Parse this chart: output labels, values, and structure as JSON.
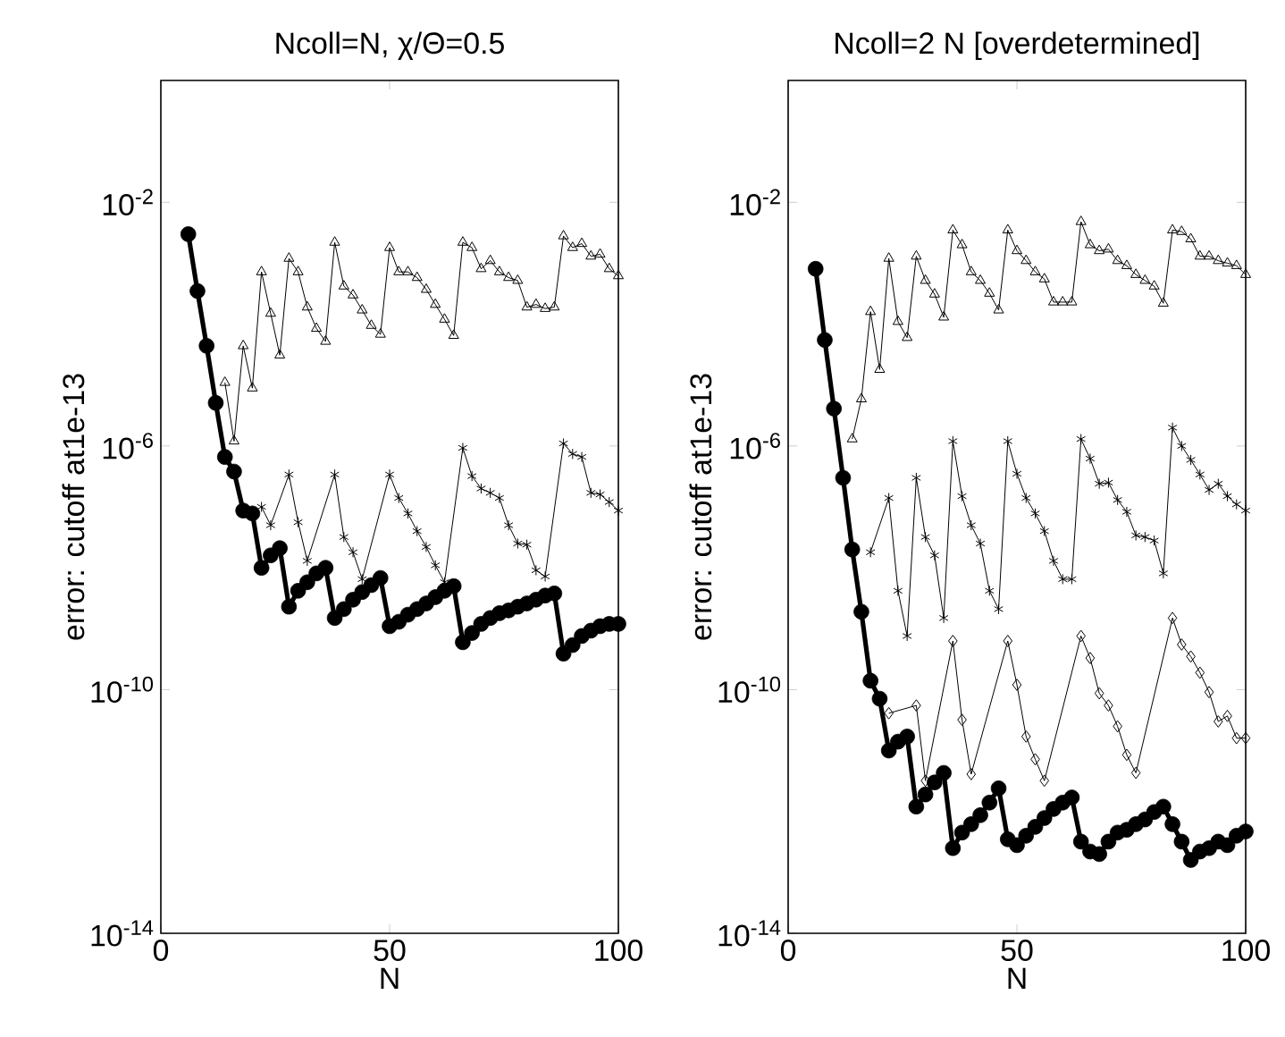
{
  "chart_data": [
    {
      "type": "line",
      "title": "Ncoll=N, χ/Θ=0.5",
      "xlabel": "N",
      "ylabel": "error: cutoff at1e-13",
      "log": "y",
      "xlim": [
        0,
        100
      ],
      "xticks": [
        0,
        50,
        100
      ],
      "ylim": [
        1e-14,
        1
      ],
      "yticks": [
        {
          "value": 1e-14,
          "label": "10$^{-14}$"
        },
        {
          "value": 1e-10,
          "label": "10$^{-10}$"
        },
        {
          "value": 1e-06,
          "label": "10$^{-6}$"
        },
        {
          "value": 0.01,
          "label": "10$^{-2}$"
        }
      ],
      "series": [
        {
          "color": "#000000",
          "marker": "triangle",
          "line_style": "solid",
          "x": [
            14,
            16,
            18,
            20,
            22,
            24,
            26,
            28,
            30,
            32,
            34,
            36,
            38,
            40,
            42,
            44,
            46,
            48,
            50,
            52,
            54,
            56,
            58,
            60,
            62,
            64,
            66,
            68,
            70,
            72,
            74,
            76,
            78,
            80,
            82,
            84,
            86,
            88,
            90,
            92,
            94,
            96,
            98,
            100
          ],
          "values": [
            1.1e-05,
            1.2e-06,
            4.4e-05,
            8.9e-06,
            0.00072,
            0.00015,
            3.1e-05,
            0.0012,
            0.00072,
            0.00019,
            8.5e-05,
            5.2e-05,
            0.0022,
            0.00042,
            0.0003,
            0.00017,
            9.5e-05,
            6.8e-05,
            0.0018,
            0.00072,
            0.00072,
            0.00058,
            0.00037,
            0.00021,
            0.00012,
            6.5e-05,
            0.0022,
            0.0018,
            0.00081,
            0.0011,
            0.00072,
            0.00058,
            0.00052,
            0.00019,
            0.00021,
            0.00018,
            0.00019,
            0.0028,
            0.0018,
            0.0021,
            0.0013,
            0.0014,
            0.00081,
            0.00062
          ]
        },
        {
          "color": "#000000",
          "marker": "cross",
          "line_style": "solid",
          "x": [
            22,
            24,
            26,
            28,
            30,
            32,
            38,
            40,
            42,
            44,
            50,
            52,
            54,
            56,
            58,
            60,
            62,
            66,
            68,
            70,
            72,
            74,
            76,
            78,
            80,
            82,
            84,
            86,
            88,
            90,
            92,
            94,
            96,
            98,
            100
          ],
          "values": [
            1e-07,
            5e-08,
            null,
            3.4e-07,
            5.6e-08,
            1.3e-08,
            3.4e-07,
            3.2e-08,
            1.8e-08,
            6.5e-09,
            3.4e-07,
            1.4e-07,
            7.8e-08,
            4e-08,
            2.2e-08,
            1.1e-08,
            5.8e-09,
            9.3e-07,
            3.2e-07,
            2e-07,
            1.7e-07,
            1.4e-07,
            5e-08,
            2.5e-08,
            2.4e-08,
            9.1e-09,
            7.2e-09,
            null,
            1.1e-06,
            7.4e-07,
            6.6e-07,
            1.7e-07,
            1.6e-07,
            1.2e-07,
            8.7e-08
          ]
        },
        {
          "color": "#000000",
          "marker": "circle",
          "line_style": "solid",
          "x": [
            6,
            8,
            10,
            12,
            14,
            16,
            18,
            20,
            22,
            24,
            26,
            28,
            30,
            32,
            34,
            36,
            38,
            40,
            42,
            44,
            46,
            48,
            50,
            52,
            54,
            56,
            58,
            60,
            62,
            64,
            66,
            68,
            70,
            72,
            74,
            76,
            78,
            80,
            82,
            84,
            86,
            88,
            90,
            92,
            94,
            96,
            98,
            100
          ],
          "values": [
            0.003,
            0.00035,
            4.4e-05,
            5.1e-06,
            6.6e-07,
            3.8e-07,
            8.7e-08,
            7.8e-08,
            1e-08,
            1.6e-08,
            2.1e-08,
            2.3e-09,
            4.2e-09,
            5.8e-09,
            8.1e-09,
            1e-08,
            1.5e-09,
            2.1e-09,
            3e-09,
            4e-09,
            5.2e-09,
            6.8e-09,
            1.1e-09,
            1.3e-09,
            1.7e-09,
            2.1e-09,
            2.6e-09,
            3.3e-09,
            4.2e-09,
            5e-09,
            6e-10,
            8.5e-10,
            1.2e-09,
            1.5e-09,
            1.8e-09,
            2e-09,
            2.3e-09,
            2.6e-09,
            3e-09,
            3.5e-09,
            3.8e-09,
            3.9e-10,
            5.4e-10,
            7.6e-10,
            9.3e-10,
            1.1e-09,
            1.2e-09,
            1.2e-09
          ]
        }
      ]
    },
    {
      "type": "line",
      "title": "Ncoll=2 N [overdetermined]",
      "xlabel": "N",
      "ylabel": "error: cutoff at1e-13",
      "log": "y",
      "xlim": [
        0,
        100
      ],
      "xticks": [
        0,
        50,
        100
      ],
      "ylim": [
        1e-14,
        1
      ],
      "yticks": [
        {
          "value": 1e-14,
          "label": "10$^{-14}$"
        },
        {
          "value": 1e-10,
          "label": "10$^{-10}$"
        },
        {
          "value": 1e-06,
          "label": "10$^{-6}$"
        },
        {
          "value": 0.01,
          "label": "10$^{-2}$"
        }
      ],
      "series": [
        {
          "color": "#000000",
          "marker": "triangle",
          "line_style": "solid",
          "x": [
            14,
            16,
            18,
            20,
            22,
            24,
            26,
            28,
            30,
            32,
            34,
            36,
            38,
            40,
            42,
            44,
            46,
            48,
            50,
            52,
            54,
            56,
            58,
            60,
            62,
            64,
            66,
            68,
            70,
            72,
            74,
            76,
            78,
            80,
            82,
            84,
            86,
            88,
            90,
            92,
            94,
            96,
            98,
            100
          ],
          "values": [
            1.3e-06,
            5.9e-06,
            0.00016,
            1.8e-05,
            0.0012,
            0.00011,
            6e-05,
            0.0013,
            0.00052,
            0.00031,
            0.00013,
            0.0035,
            0.002,
            0.00072,
            0.00052,
            0.00032,
            0.00017,
            0.0035,
            0.0016,
            0.0011,
            0.00072,
            0.00055,
            0.00023,
            0.00023,
            0.00023,
            0.0048,
            0.002,
            0.0016,
            0.0017,
            0.0011,
            0.00091,
            0.00065,
            0.00052,
            0.00042,
            0.00022,
            0.0035,
            0.0033,
            0.0025,
            0.0013,
            0.0013,
            0.0011,
            0.001,
            0.00091,
            0.00065
          ]
        },
        {
          "color": "#000000",
          "marker": "cross",
          "line_style": "solid",
          "x": [
            18,
            22,
            24,
            26,
            28,
            30,
            32,
            34,
            36,
            38,
            40,
            42,
            44,
            46,
            48,
            50,
            52,
            54,
            56,
            58,
            60,
            62,
            64,
            66,
            68,
            70,
            72,
            74,
            76,
            78,
            80,
            82,
            84,
            86,
            88,
            90,
            92,
            94,
            96,
            98,
            100
          ],
          "values": [
            1.8e-08,
            1.4e-07,
            4.2e-09,
            7.6e-10,
            3e-07,
            3.2e-08,
            1.6e-08,
            1.5e-09,
            1.2e-06,
            1.5e-07,
            5e-08,
            2.5e-08,
            4.2e-09,
            2.1e-09,
            1.2e-06,
            3.5e-07,
            1.4e-07,
            7.8e-08,
            4e-08,
            1.3e-08,
            6.5e-09,
            6.5e-09,
            1.3e-06,
            6.2e-07,
            2.4e-07,
            2.5e-07,
            1.3e-07,
            8.3e-08,
            3.4e-08,
            3.2e-08,
            2.8e-08,
            8.1e-09,
            2e-06,
            1e-06,
            5.9e-07,
            3.4e-07,
            1.9e-07,
            2.4e-07,
            1.5e-07,
            1.1e-07,
            8.7e-08
          ]
        },
        {
          "color": "#000000",
          "marker": "diamond",
          "line_style": "solid",
          "x": [
            22,
            28,
            30,
            36,
            38,
            40,
            48,
            50,
            52,
            54,
            56,
            64,
            66,
            68,
            70,
            72,
            74,
            76,
            84,
            86,
            88,
            90,
            92,
            94,
            96,
            98,
            100
          ],
          "values": [
            4.1e-11,
            5.5e-11,
            3.2e-12,
            6.3e-10,
            3.2e-11,
            4.1e-12,
            6.3e-10,
            1.2e-10,
            1.7e-11,
            7.2e-12,
            3.2e-12,
            7.6e-10,
            3.3e-10,
            8.7e-11,
            5.5e-11,
            2.5e-11,
            8.5e-12,
            4.3e-12,
            1.5e-09,
            5.5e-10,
            3.5e-10,
            1.9e-10,
            9.1e-11,
            3e-11,
            3.7e-11,
            1.6e-11,
            1.6e-11
          ]
        },
        {
          "color": "#000000",
          "marker": "circle",
          "line_style": "solid",
          "x": [
            6,
            8,
            10,
            12,
            14,
            16,
            18,
            20,
            22,
            24,
            26,
            28,
            30,
            32,
            34,
            36,
            38,
            40,
            42,
            44,
            46,
            48,
            50,
            52,
            54,
            56,
            58,
            60,
            62,
            64,
            66,
            68,
            70,
            72,
            74,
            76,
            78,
            80,
            82,
            84,
            86,
            88,
            90,
            92,
            94,
            96,
            98,
            100
          ],
          "values": [
            0.00081,
            5.5e-05,
            4.1e-06,
            3e-07,
            2e-08,
            1.9e-09,
            1.4e-10,
            7.1e-11,
            1e-11,
            1.4e-11,
            1.7e-11,
            1.2e-12,
            1.9e-12,
            3e-12,
            4.3e-12,
            2.5e-13,
            4.5e-13,
            6.2e-13,
            8.7e-13,
            1.4e-12,
            2.4e-12,
            3.5e-13,
            2.8e-13,
            4e-13,
            5.6e-13,
            7.8e-13,
            1.1e-12,
            1.4e-12,
            1.7e-12,
            3.2e-13,
            2.2e-13,
            2e-13,
            3.2e-13,
            4.5e-13,
            5e-13,
            6.2e-13,
            7.4e-13,
            9.8e-13,
            1.2e-12,
            6.2e-13,
            3.2e-13,
            1.6e-13,
            2.2e-13,
            2.5e-13,
            3.2e-13,
            2.8e-13,
            4e-13,
            4.7e-13
          ]
        }
      ]
    }
  ]
}
